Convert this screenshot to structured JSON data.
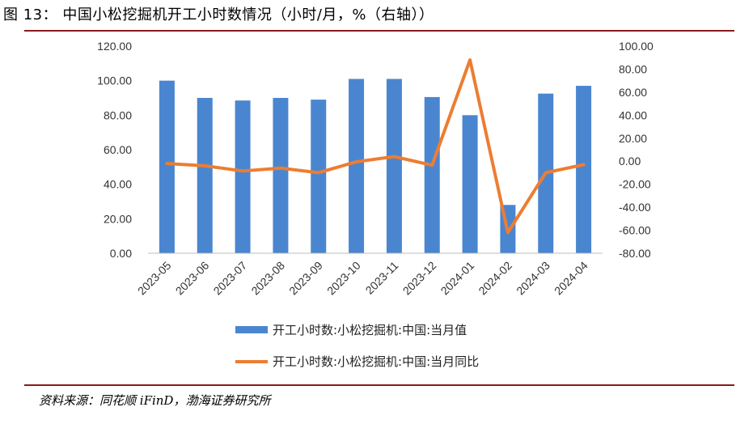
{
  "header": {
    "title": "图 13：  中国小松挖掘机开工小时数情况（小时/月，%（右轴））"
  },
  "footer": {
    "source": "资料来源：同花顺 iFinD，渤海证券研究所"
  },
  "colors": {
    "bar": "#4a86d0",
    "line": "#ed7d31",
    "rule": "#8b1a1a"
  },
  "chart_data": {
    "type": "bar+line",
    "categories": [
      "2023-05",
      "2023-06",
      "2023-07",
      "2023-08",
      "2023-09",
      "2023-10",
      "2023-11",
      "2023-12",
      "2024-01",
      "2024-02",
      "2024-03",
      "2024-04"
    ],
    "series": [
      {
        "name": "开工小时数:小松挖掘机:中国:当月值",
        "type": "bar",
        "axis": "left",
        "values": [
          100.0,
          90.0,
          88.5,
          90.0,
          89.0,
          101.0,
          101.0,
          90.5,
          80.0,
          28.0,
          92.5,
          97.0
        ]
      },
      {
        "name": "开工小时数:小松挖掘机:中国:当月同比",
        "type": "line",
        "axis": "right",
        "values": [
          -2.0,
          -4.0,
          -8.5,
          -6.0,
          -10.0,
          -0.5,
          4.0,
          -3.5,
          88.0,
          -62.0,
          -10.0,
          -3.0
        ]
      }
    ],
    "left_axis": {
      "ylim": [
        0,
        120
      ],
      "ticks": [
        "0.00",
        "20.00",
        "40.00",
        "60.00",
        "80.00",
        "100.00",
        "120.00"
      ]
    },
    "right_axis": {
      "ylim": [
        -80,
        100
      ],
      "ticks": [
        "-80.00",
        "-60.00",
        "-40.00",
        "-20.00",
        "0.00",
        "20.00",
        "40.00",
        "60.00",
        "80.00",
        "100.00"
      ]
    },
    "grid": false,
    "legend": "bottom"
  }
}
